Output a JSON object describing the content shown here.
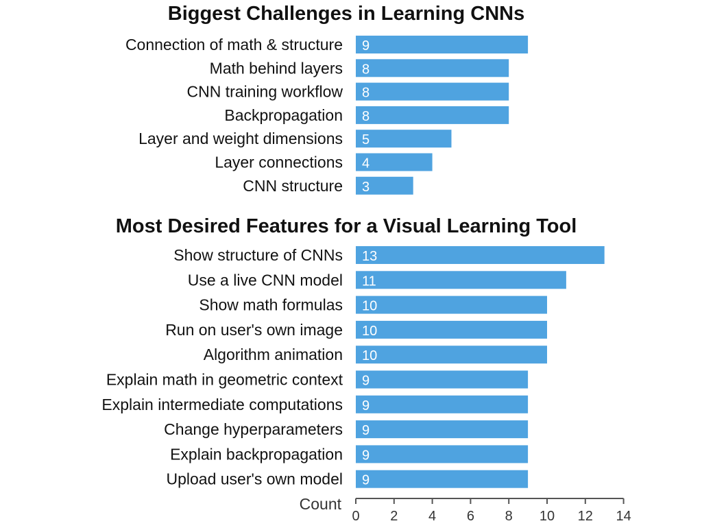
{
  "chart_data": [
    {
      "type": "bar",
      "orientation": "horizontal",
      "title": "Biggest Challenges in Learning CNNs",
      "categories": [
        "Connection of math & structure",
        "Math behind layers",
        "CNN training workflow",
        "Backpropagation",
        "Layer and weight dimensions",
        "Layer connections",
        "CNN structure"
      ],
      "values": [
        9,
        8,
        8,
        8,
        5,
        4,
        3
      ],
      "color": "#4fa3e0",
      "xlim": [
        0,
        14
      ]
    },
    {
      "type": "bar",
      "orientation": "horizontal",
      "title": "Most Desired Features for a Visual Learning Tool",
      "categories": [
        "Show structure of CNNs",
        "Use a live CNN model",
        "Show math formulas",
        "Run on user's own image",
        "Algorithm animation",
        "Explain math in geometric context",
        "Explain intermediate computations",
        "Change hyperparameters",
        "Explain backpropagation",
        "Upload user's own model"
      ],
      "values": [
        13,
        11,
        10,
        10,
        10,
        9,
        9,
        9,
        9,
        9
      ],
      "color": "#4fa3e0",
      "xlim": [
        0,
        14
      ],
      "xlabel": "Count",
      "xticks": [
        0,
        2,
        4,
        6,
        8,
        10,
        12,
        14
      ]
    }
  ]
}
